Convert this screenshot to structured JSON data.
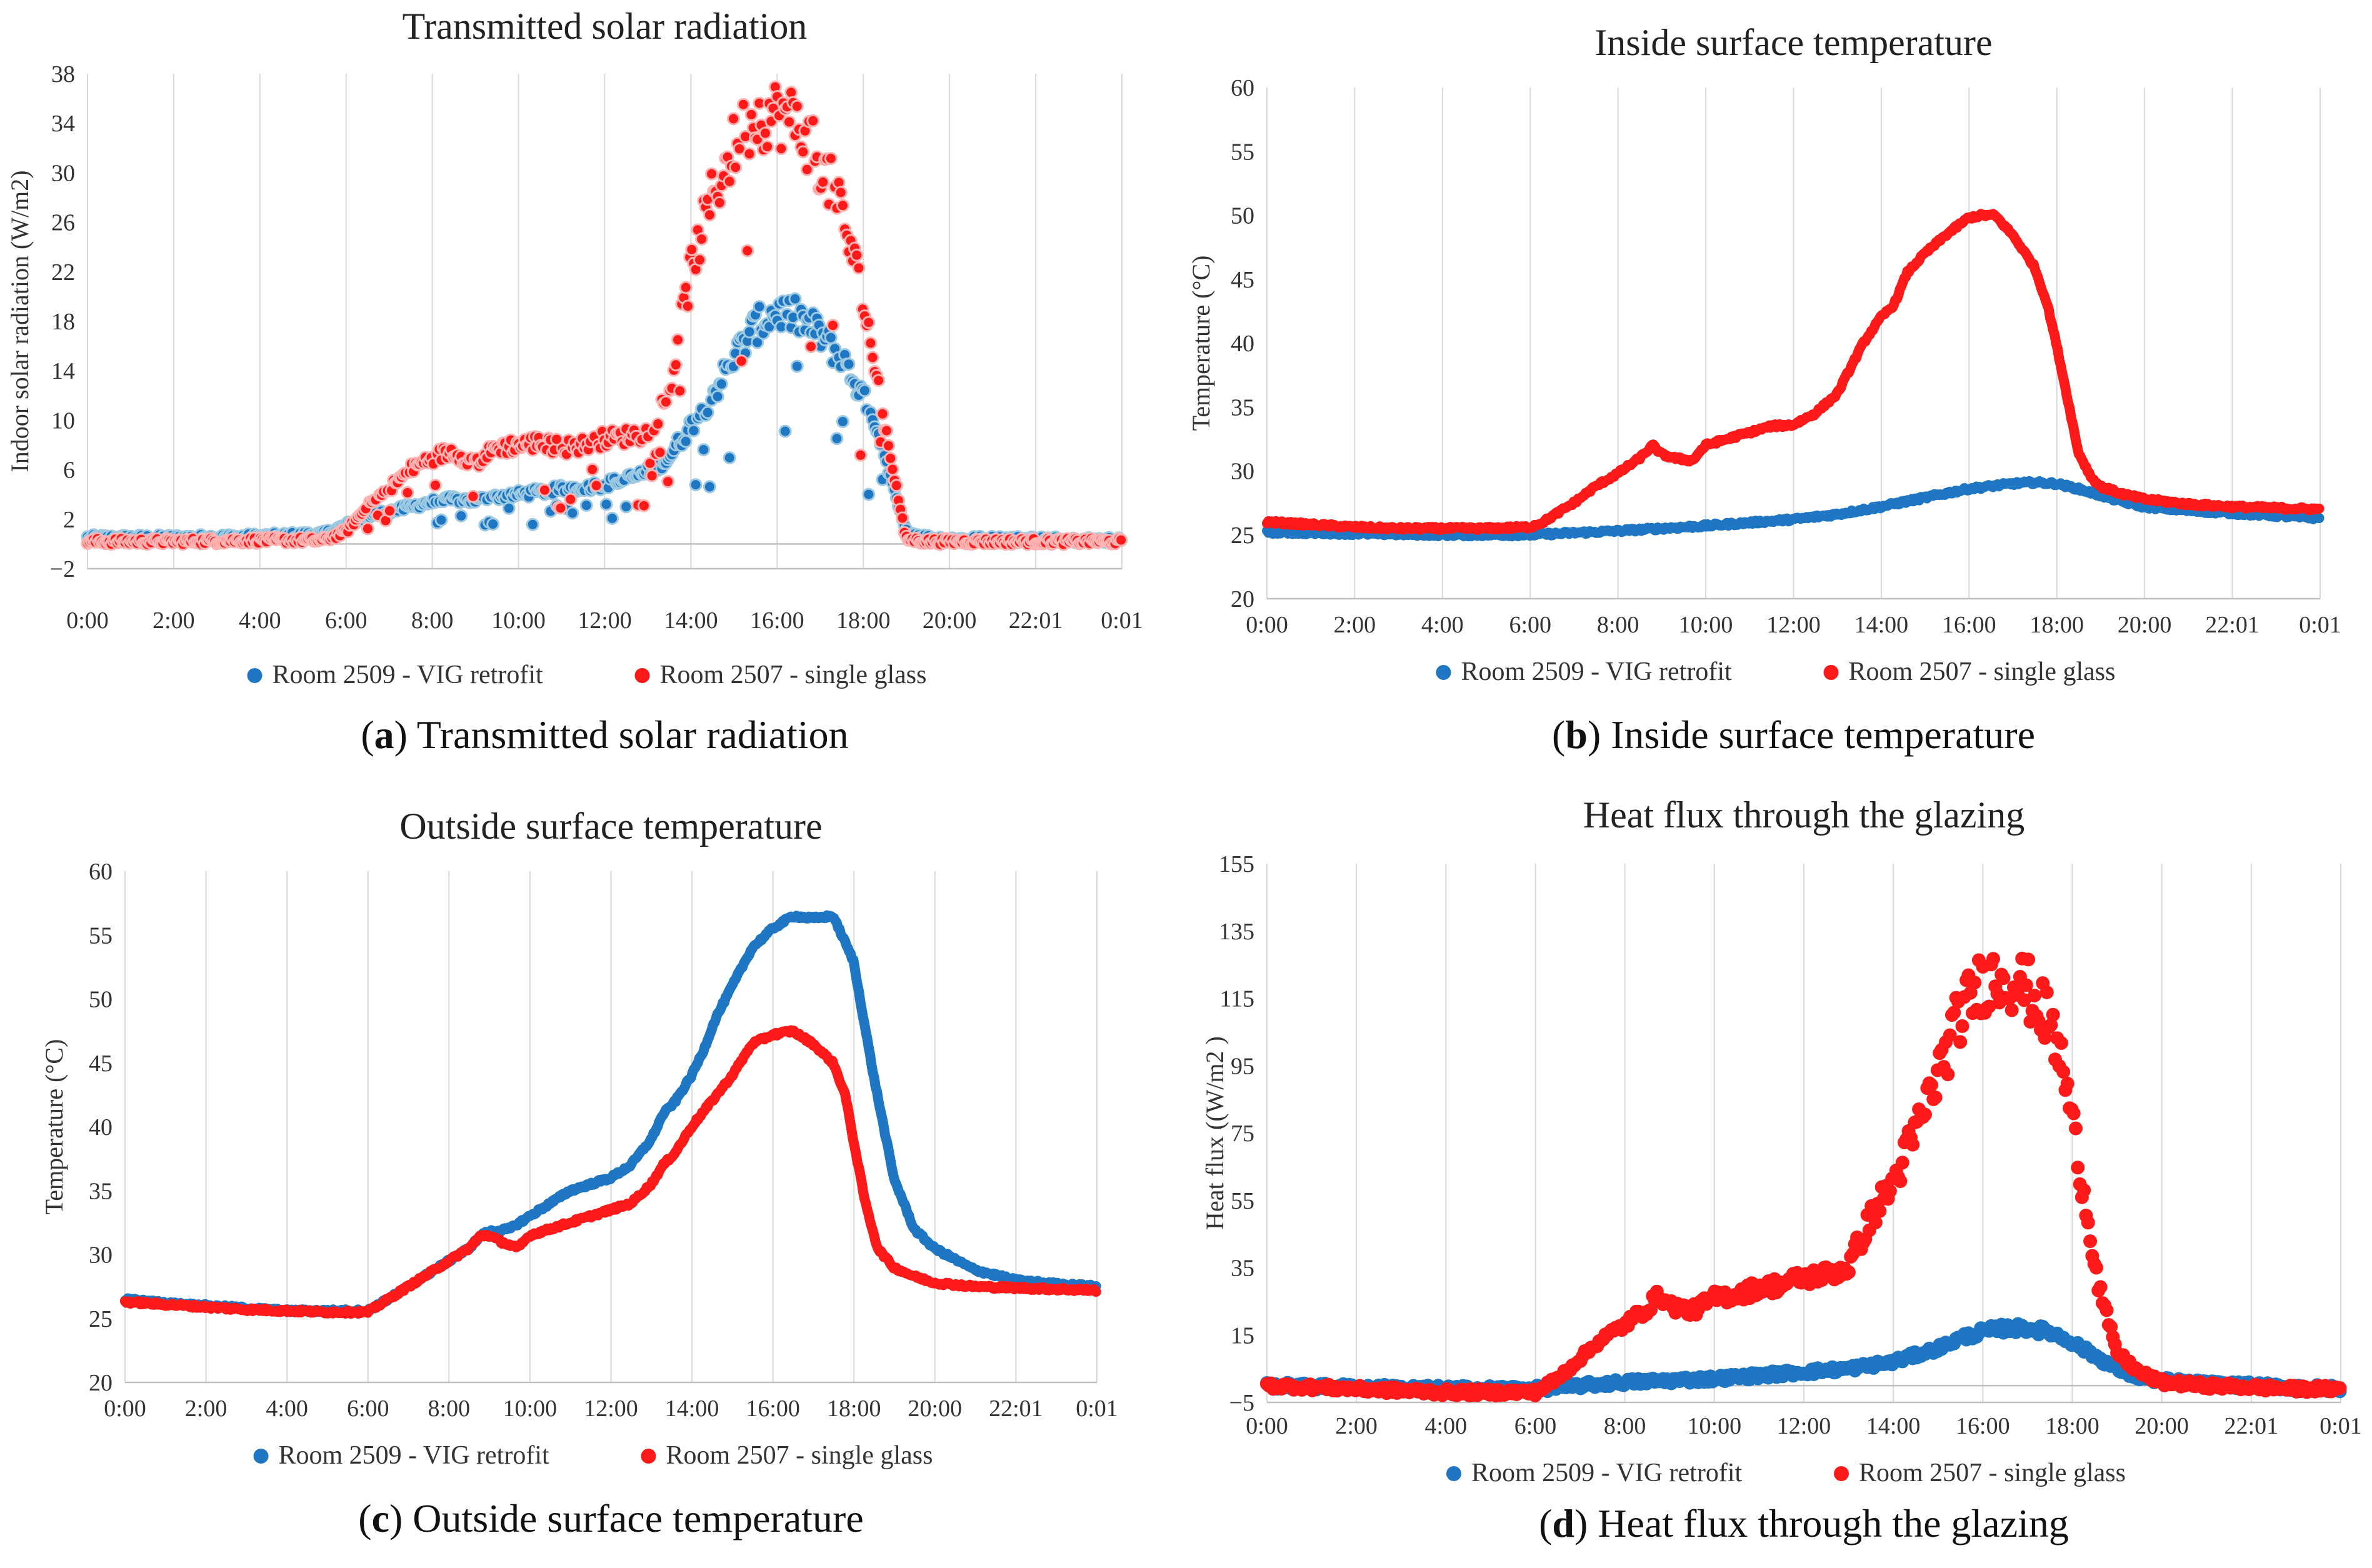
{
  "colors": {
    "vig": "#1f77c4",
    "vig_light": "#9ecae1",
    "single": "#ff1a1a",
    "single_light": "#ffb3b3"
  },
  "legend": {
    "vig": "Room 2509 - VIG retrofit",
    "single": "Room 2507 - single glass"
  },
  "chart_data": [
    {
      "id": "a",
      "type": "scatter",
      "title": "Transmitted solar radiation",
      "caption_letter": "a",
      "caption_text": "Transmitted solar radiation",
      "ylabel": "Indoor solar radiation (W/m2)",
      "xlabel": "",
      "ylim": [
        -2,
        38
      ],
      "yticks": [
        -2,
        2,
        6,
        10,
        14,
        18,
        22,
        26,
        30,
        34,
        38
      ],
      "xlim": [
        0,
        24.02
      ],
      "xtick_labels": [
        "0:00",
        "2:00",
        "4:00",
        "6:00",
        "8:00",
        "10:00",
        "12:00",
        "14:00",
        "16:00",
        "18:00",
        "20:00",
        "22:01",
        "0:01"
      ],
      "grid": "vertical",
      "legend_position": "bottom",
      "series": [
        {
          "key": "vig",
          "name": "Room 2509 - VIG retrofit",
          "x": [
            0,
            2,
            4,
            5.5,
            6,
            6.5,
            7,
            7.5,
            8,
            8.5,
            9,
            9.5,
            10,
            10.5,
            11,
            11.5,
            12,
            12.5,
            13,
            13.5,
            14,
            14.5,
            15,
            15.5,
            16,
            16.5,
            17,
            17.5,
            18,
            18.5,
            19,
            19.5,
            20,
            22,
            24
          ],
          "y": [
            0.5,
            0.5,
            0.6,
            0.8,
            1.5,
            2.2,
            2.6,
            3,
            3.4,
            3.6,
            3.5,
            3.8,
            4,
            4.2,
            4.4,
            4.6,
            4.8,
            5.2,
            5.8,
            7,
            9.5,
            12,
            15,
            17.5,
            18.8,
            18.3,
            17,
            15,
            12,
            7,
            1,
            0.5,
            0.4,
            0.4,
            0.3
          ]
        },
        {
          "key": "single",
          "name": "Room 2507 - single glass",
          "x": [
            0,
            2,
            4,
            5.5,
            6,
            6.5,
            7,
            7.5,
            8,
            8.5,
            9,
            9.5,
            10,
            10.5,
            11,
            11.5,
            12,
            12.5,
            13,
            13.5,
            14,
            14.5,
            15,
            15.5,
            16,
            16.5,
            17,
            17.5,
            18,
            18.5,
            19,
            19.5,
            20,
            22,
            24
          ],
          "y": [
            0.2,
            0.2,
            0.3,
            0.3,
            1,
            3,
            4.5,
            6,
            7,
            7.5,
            6.5,
            7.8,
            8,
            8.2,
            7.8,
            8,
            8.5,
            8.7,
            9,
            12,
            22,
            28,
            32,
            34.5,
            34.8,
            34,
            31,
            27,
            20,
            10,
            0.4,
            0.2,
            0.2,
            0.2,
            0.2
          ]
        }
      ]
    },
    {
      "id": "b",
      "type": "line",
      "title": "Inside surface temperature",
      "caption_letter": "b",
      "caption_text": "Inside surface temperature",
      "ylabel": "Temperature (°C)",
      "xlabel": "",
      "ylim": [
        20,
        60
      ],
      "yticks": [
        20,
        25,
        30,
        35,
        40,
        45,
        50,
        55,
        60
      ],
      "xlim": [
        0,
        24.02
      ],
      "xtick_labels": [
        "0:00",
        "2:00",
        "4:00",
        "6:00",
        "8:00",
        "10:00",
        "12:00",
        "14:00",
        "16:00",
        "18:00",
        "20:00",
        "22:01",
        "0:01"
      ],
      "grid": "vertical",
      "legend_position": "bottom",
      "series": [
        {
          "key": "vig",
          "name": "Room 2509 - VIG retrofit",
          "x": [
            0,
            2,
            4,
            6,
            8,
            10,
            12,
            13,
            14,
            15,
            16,
            17,
            17.5,
            18,
            18.5,
            19,
            19.5,
            20,
            21,
            22,
            23,
            24
          ],
          "y": [
            25.2,
            25.1,
            25,
            25,
            25.3,
            25.7,
            26.2,
            26.6,
            27.2,
            27.9,
            28.6,
            29,
            29.1,
            29,
            28.6,
            28.1,
            27.6,
            27.2,
            26.9,
            26.7,
            26.5,
            26.3
          ]
        },
        {
          "key": "single",
          "name": "Room 2507 - single glass",
          "x": [
            0,
            1,
            2,
            3,
            4,
            5,
            6,
            6.3,
            7,
            7.5,
            8,
            8.5,
            8.8,
            9,
            9.3,
            9.7,
            10,
            10.5,
            11,
            11.5,
            12,
            12.5,
            13,
            13.3,
            13.6,
            14,
            14.3,
            14.6,
            15,
            15.5,
            16,
            16.3,
            16.6,
            17,
            17.5,
            17.8,
            18,
            18.3,
            18.5,
            18.8,
            19,
            19.5,
            20,
            21,
            22,
            23,
            24
          ],
          "y": [
            26,
            25.8,
            25.6,
            25.5,
            25.5,
            25.5,
            25.6,
            26,
            27.5,
            28.8,
            29.8,
            31,
            32,
            31.3,
            31,
            30.8,
            32,
            32.5,
            33,
            33.5,
            33.6,
            34.5,
            36,
            38,
            40,
            42,
            43,
            45.5,
            47,
            48.5,
            49.8,
            50,
            50,
            48.5,
            46,
            43,
            40,
            35,
            31.5,
            29.5,
            28.8,
            28.2,
            27.8,
            27.4,
            27.2,
            27.1,
            27
          ]
        }
      ]
    },
    {
      "id": "c",
      "type": "line",
      "title": "Outside surface temperature",
      "caption_letter": "c",
      "caption_text": "Outside surface temperature",
      "ylabel": "Temperature (°C)",
      "xlabel": "",
      "ylim": [
        20,
        60
      ],
      "yticks": [
        20,
        25,
        30,
        35,
        40,
        45,
        50,
        55,
        60
      ],
      "xlim": [
        0,
        24.02
      ],
      "xtick_labels": [
        "0:00",
        "2:00",
        "4:00",
        "6:00",
        "8:00",
        "10:00",
        "12:00",
        "14:00",
        "16:00",
        "18:00",
        "20:00",
        "22:01",
        "0:01"
      ],
      "grid": "vertical",
      "legend_position": "bottom",
      "series": [
        {
          "key": "vig",
          "name": "Room 2509 - VIG retrofit",
          "x": [
            0,
            1,
            2,
            3,
            4,
            5,
            6,
            6.5,
            7,
            7.5,
            8,
            8.5,
            8.8,
            9,
            9.5,
            10,
            10.5,
            11,
            11.5,
            12,
            12.5,
            13,
            13.3,
            13.6,
            14,
            14.3,
            14.6,
            15,
            15.5,
            16,
            16.5,
            17,
            17.5,
            18,
            18.5,
            19,
            19.5,
            20,
            21,
            22,
            23,
            24
          ],
          "y": [
            26.5,
            26.2,
            26,
            25.8,
            25.6,
            25.6,
            25.6,
            26.5,
            27.5,
            28.5,
            29.5,
            30.5,
            31.5,
            31.8,
            32,
            33,
            34,
            35,
            35.5,
            36,
            37,
            39,
            41,
            42,
            44,
            46,
            48.5,
            51,
            54,
            55.5,
            56.5,
            56.3,
            56.5,
            53,
            44,
            36,
            32,
            30.5,
            28.8,
            28,
            27.7,
            27.5
          ]
        },
        {
          "key": "single",
          "name": "Room 2507 - single glass",
          "x": [
            0,
            1,
            2,
            3,
            4,
            5,
            6,
            6.5,
            7,
            7.5,
            8,
            8.5,
            8.8,
            9,
            9.3,
            9.7,
            10,
            10.5,
            11,
            11.5,
            12,
            12.5,
            13,
            13.3,
            13.6,
            14,
            14.5,
            15,
            15.5,
            16,
            16.5,
            17,
            17.5,
            17.8,
            18,
            18.3,
            18.6,
            19,
            19.5,
            20,
            21,
            22,
            23,
            24
          ],
          "y": [
            26.3,
            26.1,
            25.9,
            25.7,
            25.6,
            25.5,
            25.5,
            26.5,
            27.5,
            28.5,
            29.5,
            30.5,
            31.5,
            31.5,
            31,
            30.5,
            31.5,
            32,
            32.5,
            33,
            33.5,
            34,
            35.5,
            37,
            38,
            40,
            42,
            44,
            46.5,
            47.2,
            47.5,
            46.5,
            45,
            42.5,
            39,
            34,
            30.5,
            29,
            28.3,
            27.8,
            27.5,
            27.4,
            27.3,
            27.2
          ]
        }
      ]
    },
    {
      "id": "d",
      "type": "scatter",
      "title": "Heat flux through the glazing",
      "caption_letter": "d",
      "caption_text": "Heat flux through the glazing",
      "ylabel": "Heat flux ((W/m2 )",
      "xlabel": "",
      "ylim": [
        -5,
        155
      ],
      "yticks": [
        -5,
        15,
        35,
        55,
        75,
        95,
        115,
        135,
        155
      ],
      "xlim": [
        0,
        24.02
      ],
      "xtick_labels": [
        "0:00",
        "2:00",
        "4:00",
        "6:00",
        "8:00",
        "10:00",
        "12:00",
        "14:00",
        "16:00",
        "18:00",
        "20:00",
        "22:01",
        "0:01"
      ],
      "grid": "vertical",
      "legend_position": "bottom",
      "series": [
        {
          "key": "vig",
          "name": "Room 2509 - VIG retrofit",
          "x": [
            0,
            2,
            4,
            6,
            7,
            8,
            9,
            10,
            11,
            12,
            13,
            14,
            14.5,
            15,
            15.5,
            16,
            16.5,
            17,
            17.5,
            18,
            18.5,
            19,
            19.5,
            20,
            21,
            22,
            23,
            24
          ],
          "y": [
            0,
            -0.5,
            -1,
            -1,
            0,
            1,
            1.5,
            2,
            3,
            4,
            5,
            7,
            9,
            11,
            14,
            16,
            17,
            17,
            16,
            13,
            9,
            5,
            2.5,
            1.5,
            0.5,
            0,
            -0.5,
            -1
          ]
        },
        {
          "key": "single",
          "name": "Room 2507 - single glass",
          "x": [
            0,
            1,
            2,
            3,
            4,
            5,
            6,
            6.5,
            7,
            7.5,
            8,
            8.5,
            8.8,
            9,
            9.5,
            10,
            10.5,
            11,
            11.5,
            12,
            12.5,
            13,
            13.3,
            13.6,
            14,
            14.5,
            15,
            15.5,
            16,
            16.5,
            17,
            17.5,
            17.8,
            18,
            18.3,
            18.6,
            19,
            19.5,
            20,
            21,
            22,
            23,
            24
          ],
          "y": [
            0,
            -0.5,
            -1,
            -1.5,
            -2,
            -2,
            -2,
            2,
            8,
            14,
            18,
            23,
            27,
            24,
            22,
            26,
            27,
            29,
            30,
            32,
            33,
            35,
            44,
            52,
            60,
            75,
            92,
            110,
            120,
            122,
            118,
            108,
            95,
            80,
            55,
            30,
            10,
            4,
            1,
            0,
            -0.5,
            -1,
            -1
          ]
        }
      ]
    }
  ]
}
